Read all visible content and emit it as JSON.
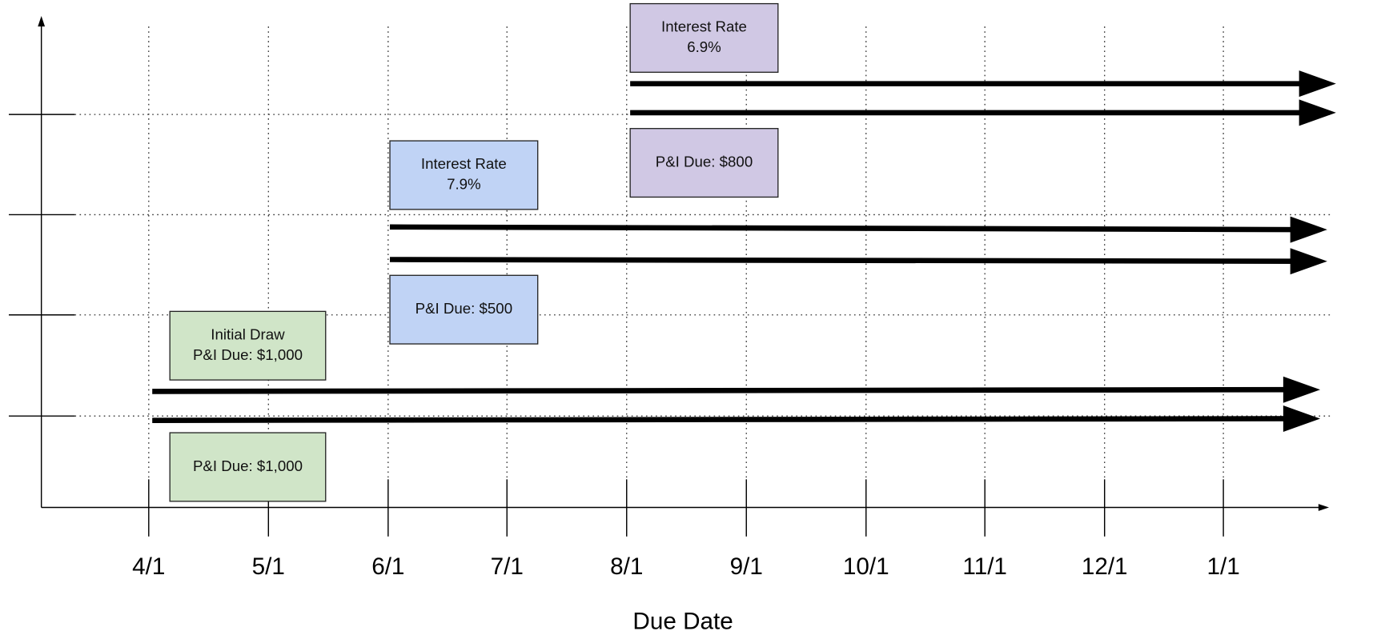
{
  "x_axis": {
    "title": "Due Date",
    "labels": [
      "4/1",
      "5/1",
      "6/1",
      "7/1",
      "8/1",
      "9/1",
      "10/1",
      "11/1",
      "12/1",
      "1/1"
    ]
  },
  "boxes": [
    {
      "lines": [
        "Initial Draw",
        "P&I Due: $1,000"
      ]
    },
    {
      "lines": [
        "P&I Due: $1,000"
      ]
    },
    {
      "lines": [
        "Interest Rate",
        "7.9%"
      ]
    },
    {
      "lines": [
        "P&I Due: $500"
      ]
    },
    {
      "lines": [
        "Interest Rate",
        "6.9%"
      ]
    },
    {
      "lines": [
        "P&I Due: $800"
      ]
    }
  ]
}
